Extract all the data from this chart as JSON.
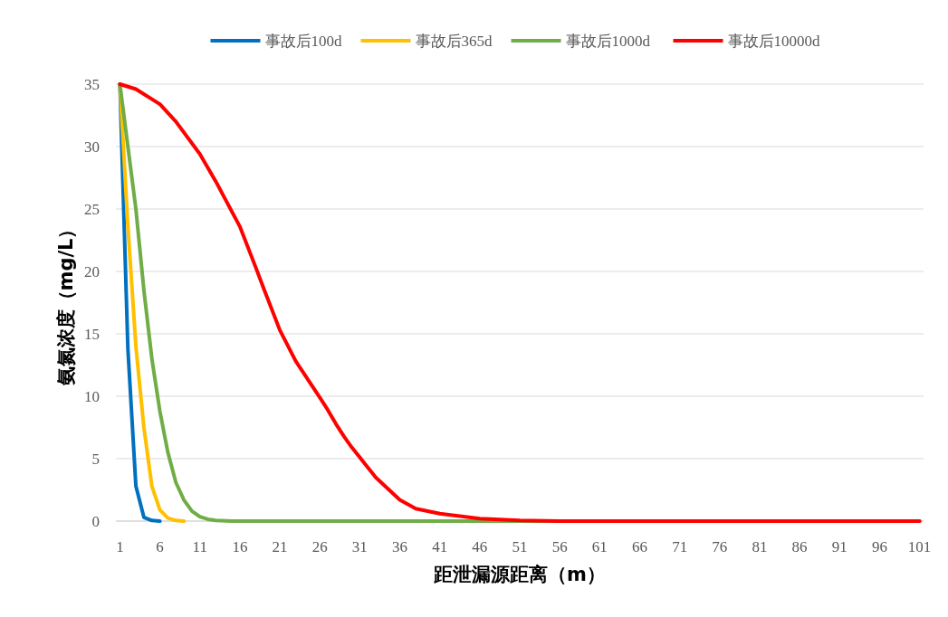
{
  "chart_data": {
    "type": "line",
    "xlabel": "距泄漏源距离（m）",
    "ylabel": "氨氮浓度（mg/L）",
    "xlim": [
      0.5,
      101.5
    ],
    "xticks": [
      1,
      6,
      11,
      16,
      21,
      26,
      31,
      36,
      41,
      46,
      51,
      56,
      61,
      66,
      71,
      76,
      81,
      86,
      91,
      96,
      101
    ],
    "ylim": [
      0,
      35
    ],
    "yticks": [
      0,
      5,
      10,
      15,
      20,
      25,
      30,
      35
    ],
    "grid": "y",
    "legend": "top",
    "marker": "none",
    "line_style": "solid",
    "series": [
      {
        "name": "事故后100d",
        "color": "#0070c0",
        "x": [
          1,
          2,
          3,
          4,
          5,
          6
        ],
        "values": [
          35,
          13.8,
          2.8,
          0.3,
          0.05,
          0
        ]
      },
      {
        "name": "事故后365d",
        "color": "#ffc000",
        "x": [
          1,
          2,
          3,
          4,
          5,
          6,
          7,
          8,
          9
        ],
        "values": [
          35,
          23.6,
          14,
          7.5,
          2.8,
          0.9,
          0.25,
          0.05,
          0
        ]
      },
      {
        "name": "事故后1000d",
        "color": "#70ad47",
        "x": [
          1,
          2,
          3,
          4,
          5,
          6,
          7,
          8,
          9,
          10,
          11,
          12,
          13,
          15,
          101
        ],
        "values": [
          35,
          30,
          25,
          18.5,
          13,
          8.8,
          5.5,
          3.1,
          1.7,
          0.8,
          0.35,
          0.15,
          0.05,
          0,
          0
        ]
      },
      {
        "name": "事故后10000d",
        "color": "#ff0000",
        "x": [
          1,
          3,
          6,
          8,
          11,
          13,
          16,
          18,
          19,
          21,
          23,
          26,
          27,
          28,
          29,
          30,
          31,
          33,
          36,
          38,
          41,
          46,
          51,
          56,
          101
        ],
        "values": [
          35,
          34.6,
          33.4,
          32,
          29.4,
          27.2,
          23.6,
          20.3,
          18.6,
          15.3,
          12.8,
          9.9,
          8.9,
          7.8,
          6.8,
          5.9,
          5.1,
          3.5,
          1.7,
          1.0,
          0.6,
          0.2,
          0.05,
          0,
          0
        ]
      }
    ]
  }
}
